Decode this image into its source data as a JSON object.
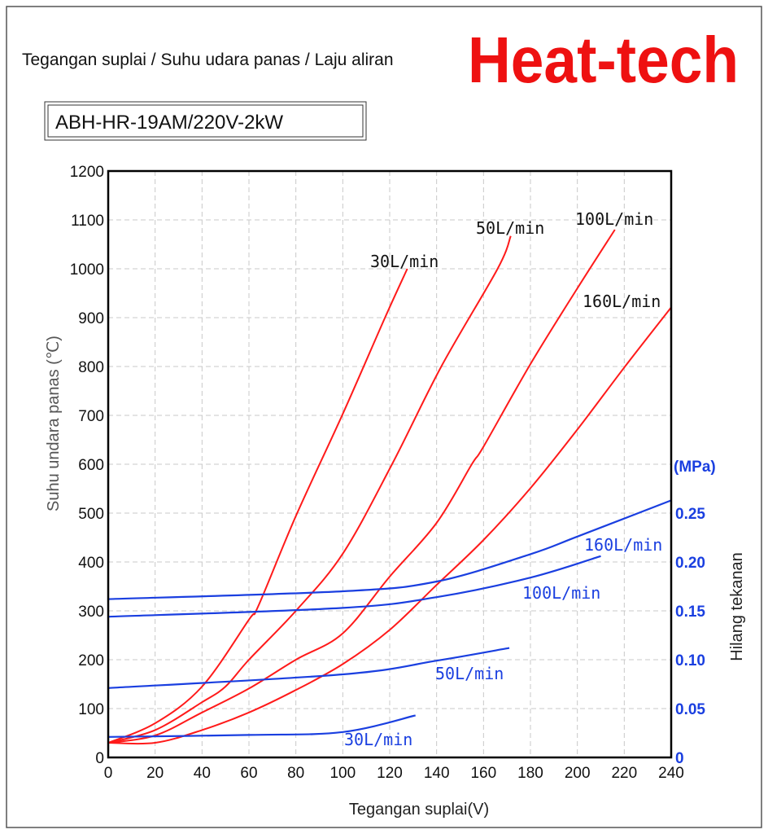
{
  "header": {
    "title": "Tegangan suplai / Suhu udara panas / Laju aliran",
    "brand": "Heat-tech",
    "model": "ABH-HR-19AM/220V-2kW"
  },
  "colors": {
    "temperature": "#ff1a1a",
    "pressure": "#1a3fe0",
    "brand": "#ee1111"
  },
  "chart_data": {
    "type": "line",
    "title": "Tegangan suplai / Suhu udara panas / Laju aliran",
    "xlabel": "Tegangan suplai(V)",
    "ylabel": "Suhu undara panas (℃)",
    "y2label": "Hilang tekanan",
    "y2unit": "(MPa)",
    "xlim": [
      0,
      240
    ],
    "ylim": [
      0,
      1200
    ],
    "y2lim": [
      0,
      0.3
    ],
    "grid": true,
    "x_ticks": [
      "0",
      "20",
      "40",
      "60",
      "80",
      "100",
      "120",
      "140",
      "160",
      "180",
      "200",
      "220",
      "240"
    ],
    "y_ticks": [
      "0",
      "100",
      "200",
      "300",
      "400",
      "500",
      "600",
      "700",
      "800",
      "900",
      "1000",
      "1100",
      "1200"
    ],
    "y2_ticks": [
      "0",
      "0.05",
      "0.10",
      "0.15",
      "0.20",
      "0.25"
    ],
    "temperature_series": [
      {
        "name": "30L/min",
        "x": [
          0,
          20,
          40,
          60,
          64,
          80,
          100,
          118,
          127.5
        ],
        "y": [
          30,
          70,
          145,
          282,
          310,
          494,
          703,
          900,
          1000
        ]
      },
      {
        "name": "50L/min",
        "x": [
          0,
          20,
          40,
          50,
          60,
          80,
          100,
          121,
          142,
          166,
          171.6
        ],
        "y": [
          30,
          56,
          113,
          145,
          200,
          300,
          417,
          600,
          800,
          1000,
          1067
        ]
      },
      {
        "name": "100L/min",
        "x": [
          0,
          20,
          40,
          60,
          80,
          100,
          120,
          140,
          155,
          160,
          180,
          200,
          216
        ],
        "y": [
          30,
          45,
          92,
          141,
          200,
          254,
          370,
          480,
          600,
          636,
          805,
          960,
          1080
        ]
      },
      {
        "name": "160L/min",
        "x": [
          0,
          20,
          40,
          60,
          80,
          100,
          120,
          140,
          160,
          180,
          200,
          220,
          240
        ],
        "y": [
          30,
          30,
          56,
          92,
          138,
          191,
          261,
          353,
          445,
          551,
          671,
          798,
          921
        ]
      }
    ],
    "pressure_series": [
      {
        "name": "30L/min",
        "x": [
          0,
          60,
          100,
          131
        ],
        "y": [
          0.021,
          0.023,
          0.026,
          0.043
        ]
      },
      {
        "name": "50L/min",
        "x": [
          0,
          100,
          140,
          171
        ],
        "y": [
          0.071,
          0.085,
          0.099,
          0.112
        ]
      },
      {
        "name": "100L/min",
        "x": [
          0,
          100,
          140,
          180,
          210
        ],
        "y": [
          0.144,
          0.153,
          0.164,
          0.184,
          0.206
        ]
      },
      {
        "name": "160L/min",
        "x": [
          0,
          100,
          140,
          180,
          200,
          240
        ],
        "y": [
          0.162,
          0.17,
          0.18,
          0.208,
          0.226,
          0.263
        ]
      }
    ]
  }
}
